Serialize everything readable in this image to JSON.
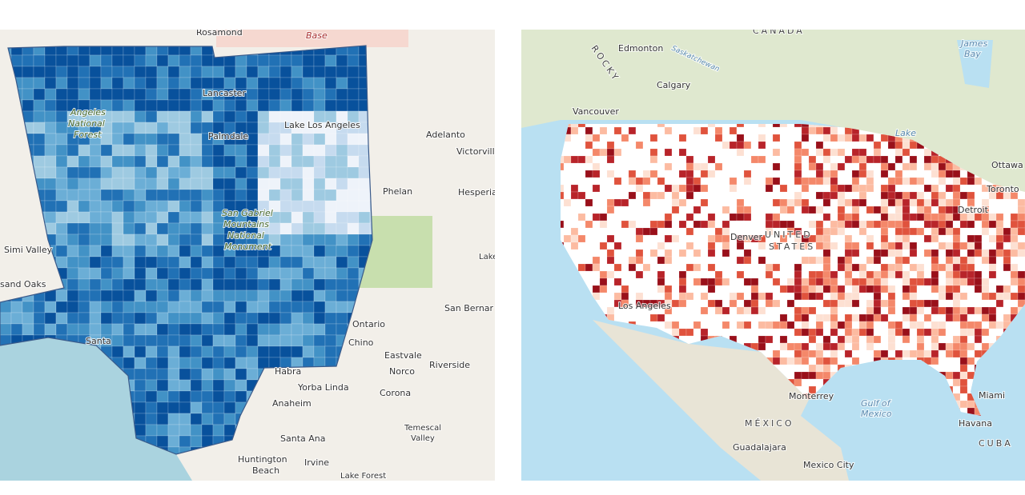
{
  "left_map": {
    "labels": [
      "Rosamond",
      "Base",
      "Lancaster",
      "Palmdale",
      "Lake Los Angeles",
      "Angeles",
      "National",
      "Forest",
      "Adelanto",
      "Victorvill",
      "Phelan",
      "Hesperia",
      "San Gabriel",
      "Mountains",
      "National",
      "Monument",
      "Simi Valley",
      "sand Oaks",
      "Santa",
      "Ontario",
      "Chino",
      "Eastvale",
      "Norco",
      "Riverside",
      "Habra",
      "Yorba Linda",
      "Corona",
      "Anaheim",
      "Santa Ana",
      "Temescal",
      "Valley",
      "Huntington",
      "Beach",
      "Irvine",
      "Lake Forest",
      "San Bernar",
      "Lake"
    ]
  },
  "right_map": {
    "labels": [
      "CANADA",
      "Edmonton",
      "ROCKY",
      "Calgary",
      "Vancouver",
      "Saskatchewan",
      "James",
      "Bay",
      "Ottawa",
      "Toronto",
      "Detroit",
      "Lake",
      "UNITED",
      "STATES",
      "Los Angeles",
      "Denver",
      "Gulf of",
      "Mexico",
      "Miami",
      "Havana",
      "CUBA",
      "MÉXICO",
      "Monterrey",
      "Guadalajara",
      "Mexico City"
    ]
  }
}
